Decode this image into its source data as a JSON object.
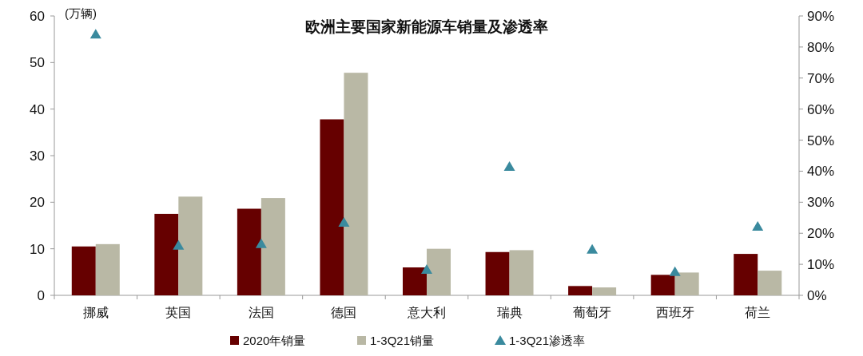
{
  "chart_data": {
    "type": "bar",
    "title": "欧洲主要国家新能源车销量及渗透率",
    "ylabel": "(万辆)",
    "categories": [
      "挪威",
      "英国",
      "法国",
      "德国",
      "意大利",
      "瑞典",
      "葡萄牙",
      "西班牙",
      "荷兰"
    ],
    "series": [
      {
        "name": "2020年销量",
        "color": "#660000",
        "values": [
          10.5,
          17.5,
          18.6,
          37.8,
          6,
          9.3,
          2,
          4.4,
          8.9
        ]
      },
      {
        "name": "1-3Q21销量",
        "color": "#b9b8a5",
        "values": [
          11,
          21.2,
          20.9,
          47.8,
          10,
          9.7,
          1.7,
          4.9,
          5.3
        ]
      },
      {
        "name": "1-3Q21渗透率",
        "type": "scatter",
        "axis": "y2",
        "marker": "triangle",
        "color": "#3a8a9e",
        "values": [
          84,
          16,
          16.5,
          23.4,
          8.2,
          41.4,
          14.7,
          7.5,
          22.1
        ]
      }
    ],
    "ylim": [
      0,
      60
    ],
    "yticks": [
      0,
      10,
      20,
      30,
      40,
      50,
      60
    ],
    "y2lim": [
      0,
      90
    ],
    "y2ticks": [
      {
        "value": 0,
        "label": "0%"
      },
      {
        "value": 10,
        "label": "10%"
      },
      {
        "value": 20,
        "label": "20%"
      },
      {
        "value": 30,
        "label": "30%"
      },
      {
        "value": 40,
        "label": "40%"
      },
      {
        "value": 50,
        "label": "50%"
      },
      {
        "value": 60,
        "label": "60%"
      },
      {
        "value": 70,
        "label": "70%"
      },
      {
        "value": 80,
        "label": "80%"
      },
      {
        "value": 90,
        "label": "90%"
      }
    ],
    "legend": "bottom"
  }
}
